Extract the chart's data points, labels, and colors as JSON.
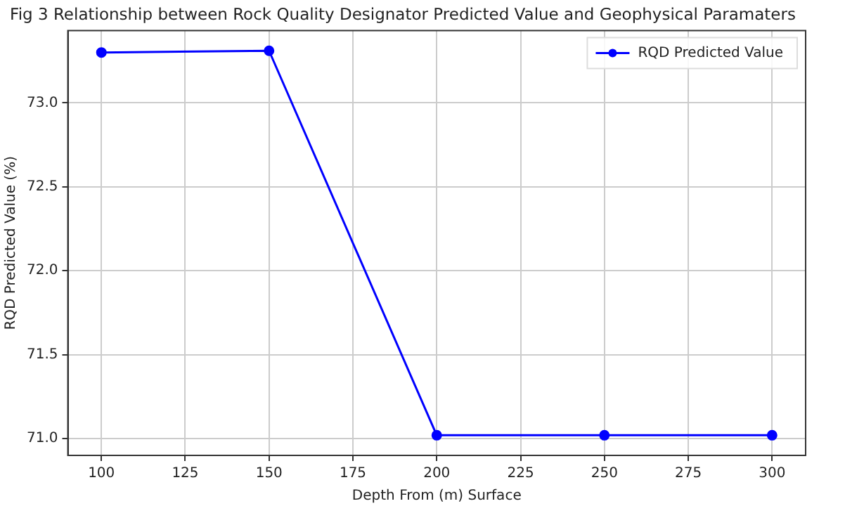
{
  "chart_data": {
    "type": "line",
    "title": "Fig 3 Relationship between Rock Quality Designator Predicted Value and Geophysical Paramaters",
    "xlabel": "Depth From (m) Surface",
    "ylabel": "RQD Predicted Value (%)",
    "x": [
      100,
      150,
      200,
      250,
      300
    ],
    "series": [
      {
        "name": "RQD Predicted Value",
        "color": "#0000ff",
        "values": [
          73.3,
          73.31,
          71.02,
          71.02,
          71.02
        ]
      }
    ],
    "xlim": [
      90,
      310
    ],
    "xticks": [
      100,
      125,
      150,
      175,
      200,
      225,
      250,
      275,
      300
    ],
    "ylim": [
      70.9,
      73.43
    ],
    "yticks": [
      {
        "value": 71,
        "label": "71.0"
      },
      71.5,
      {
        "value": 72,
        "label": "72.0"
      },
      72.5,
      {
        "value": 73,
        "label": "73.0"
      }
    ],
    "grid": true,
    "legend": "top right",
    "marker": "circle",
    "line_style": "solid"
  }
}
